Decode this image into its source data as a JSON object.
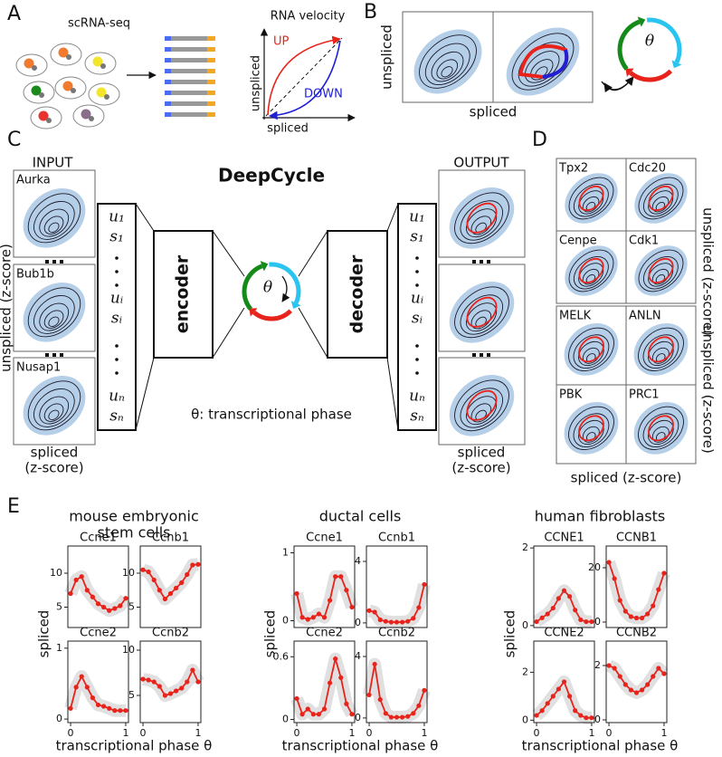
{
  "panel_a": {
    "label": "A",
    "method": "scRNA-seq",
    "velocity_title": "RNA velocity",
    "up": "UP",
    "down": "DOWN",
    "xlabel": "spliced",
    "ylabel": "unspliced"
  },
  "panel_b": {
    "label": "B",
    "xlabel": "spliced",
    "ylabel": "unspliced",
    "phase_symbol": "θ"
  },
  "panel_c": {
    "label": "C",
    "title": "DeepCycle",
    "input": "INPUT",
    "output": "OUTPUT",
    "genes": [
      "Aurka",
      "Bub1b",
      "Nusap1"
    ],
    "ylabel": "unspliced (z-score)",
    "xlabel_left": [
      "spliced",
      "(z-score)"
    ],
    "xlabel_right": [
      "spliced",
      "(z-score)"
    ],
    "vector_in": [
      "u₁",
      "s₁",
      "uᵢ",
      "sᵢ",
      "uₙ",
      "sₙ"
    ],
    "vector_out": [
      "u₁",
      "s₁",
      "uᵢ",
      "sᵢ",
      "uₙ",
      "sₙ"
    ],
    "encoder": "encoder",
    "decoder": "decoder",
    "phase_symbol": "θ",
    "phase_caption": "θ: transcriptional phase"
  },
  "panel_d": {
    "label": "D",
    "genes": [
      "Tpx2",
      "Cdc20",
      "Cenpe",
      "Cdk1",
      "MELK",
      "ANLN",
      "PBK",
      "PRC1"
    ],
    "ylabels": [
      "unspliced (z-score)",
      "unspliced (z-score)"
    ],
    "xlabel": "spliced (z-score)"
  },
  "panel_e": {
    "label": "E",
    "groups": [
      {
        "title": [
          "mouse embryonic",
          "stem cells"
        ],
        "ylabel": "spliced",
        "xlabel": "transcriptional phase θ"
      },
      {
        "title": [
          "ductal cells"
        ],
        "ylabel": "spliced",
        "xlabel": "transcriptional phase θ"
      },
      {
        "title": [
          "human fibroblasts"
        ],
        "ylabel": "spliced",
        "xlabel": "transcriptional phase θ"
      }
    ]
  },
  "chart_data": [
    {
      "type": "line",
      "title": "Ccne1",
      "x": [
        0,
        0.1,
        0.2,
        0.3,
        0.4,
        0.5,
        0.6,
        0.7,
        0.8,
        0.9,
        1
      ],
      "values": [
        7,
        9,
        9.5,
        7.5,
        6.5,
        5.5,
        5,
        4.5,
        4.8,
        5.2,
        6.3
      ],
      "color": "#e8231c",
      "xlim": [
        -0.05,
        1.05
      ],
      "ylim": [
        2,
        14
      ],
      "yticks": [
        5,
        10
      ]
    },
    {
      "type": "line",
      "title": "Ccnb1",
      "x": [
        0,
        0.1,
        0.2,
        0.3,
        0.4,
        0.5,
        0.6,
        0.7,
        0.8,
        0.9,
        1
      ],
      "values": [
        10.5,
        10.2,
        9,
        7.5,
        6.2,
        7,
        7.8,
        8.6,
        9.8,
        11.2,
        11.3
      ],
      "color": "#e8231c",
      "xlim": [
        -0.05,
        1.05
      ],
      "ylim": [
        2,
        14
      ],
      "yticks": [
        5,
        10
      ]
    },
    {
      "type": "line",
      "title": "Ccne2",
      "x": [
        0,
        0.1,
        0.2,
        0.3,
        0.4,
        0.5,
        0.6,
        0.7,
        0.8,
        0.9,
        1
      ],
      "values": [
        0.15,
        0.45,
        0.6,
        0.45,
        0.3,
        0.2,
        0.18,
        0.15,
        0.12,
        0.12,
        0.12
      ],
      "color": "#e8231c",
      "xlim": [
        -0.05,
        1.05
      ],
      "ylim": [
        -0.05,
        1.1
      ],
      "yticks": [
        0,
        1
      ],
      "xticks": [
        0,
        1
      ]
    },
    {
      "type": "line",
      "title": "Ccnb2",
      "x": [
        0,
        0.1,
        0.2,
        0.3,
        0.4,
        0.5,
        0.6,
        0.7,
        0.8,
        0.9,
        1
      ],
      "values": [
        6.8,
        6.7,
        6.5,
        6,
        5,
        5.2,
        5.5,
        5.8,
        6.5,
        7.8,
        6.5
      ],
      "color": "#e8231c",
      "xlim": [
        -0.05,
        1.05
      ],
      "ylim": [
        2,
        11
      ],
      "yticks": [
        5,
        10
      ],
      "xticks": [
        0,
        1
      ]
    },
    {
      "type": "line",
      "title": "Ccne1",
      "x": [
        0,
        0.1,
        0.2,
        0.3,
        0.4,
        0.5,
        0.6,
        0.7,
        0.8,
        0.9,
        1
      ],
      "values": [
        0.4,
        0.05,
        0.02,
        0.05,
        0.1,
        0.05,
        0.3,
        0.65,
        0.65,
        0.45,
        0.2
      ],
      "color": "#e8231c",
      "xlim": [
        -0.05,
        1.05
      ],
      "ylim": [
        -0.1,
        1.1
      ],
      "yticks": [
        0,
        1
      ]
    },
    {
      "type": "line",
      "title": "Ccnb1",
      "x": [
        0,
        0.1,
        0.2,
        0.3,
        0.4,
        0.5,
        0.6,
        0.7,
        0.8,
        0.9,
        1
      ],
      "values": [
        0.8,
        0.7,
        0.2,
        0.1,
        0.05,
        0.05,
        0.05,
        0.1,
        0.3,
        1.0,
        2.5
      ],
      "color": "#e8231c",
      "xlim": [
        -0.05,
        1.05
      ],
      "ylim": [
        -0.3,
        5
      ],
      "yticks": [
        0,
        4
      ]
    },
    {
      "type": "line",
      "title": "Ccne2",
      "x": [
        0,
        0.1,
        0.2,
        0.3,
        0.4,
        0.5,
        0.6,
        0.7,
        0.8,
        0.9,
        1
      ],
      "values": [
        0.2,
        0.05,
        0.1,
        0.05,
        0.05,
        0.1,
        0.35,
        0.58,
        0.4,
        0.15,
        0.05
      ],
      "color": "#e8231c",
      "xlim": [
        -0.05,
        1.05
      ],
      "ylim": [
        -0.03,
        0.75
      ],
      "yticks": [
        0,
        0.6
      ],
      "xticks": [
        0,
        1
      ]
    },
    {
      "type": "line",
      "title": "Ccnb2",
      "x": [
        0,
        0.1,
        0.2,
        0.3,
        0.4,
        0.5,
        0.6,
        0.7,
        0.8,
        0.9,
        1
      ],
      "values": [
        1.5,
        3.5,
        1.2,
        0.3,
        0.05,
        0.05,
        0.05,
        0.1,
        0.3,
        0.8,
        1.8
      ],
      "color": "#e8231c",
      "xlim": [
        -0.05,
        1.05
      ],
      "ylim": [
        -0.3,
        5
      ],
      "yticks": [
        0,
        4
      ],
      "xticks": [
        0,
        1
      ]
    },
    {
      "type": "line",
      "title": "CCNE1",
      "x": [
        0,
        0.1,
        0.2,
        0.3,
        0.4,
        0.5,
        0.6,
        0.7,
        0.8,
        0.9,
        1
      ],
      "values": [
        0.1,
        0.2,
        0.3,
        0.45,
        0.7,
        0.9,
        0.75,
        0.4,
        0.15,
        0.1,
        0.1
      ],
      "color": "#e8231c",
      "xlim": [
        -0.05,
        1.05
      ],
      "ylim": [
        -0.05,
        2.05
      ],
      "yticks": [
        0,
        2
      ]
    },
    {
      "type": "line",
      "title": "CCNB1",
      "x": [
        0,
        0.1,
        0.2,
        0.3,
        0.4,
        0.5,
        0.6,
        0.7,
        0.8,
        0.9,
        1
      ],
      "values": [
        22,
        16,
        8,
        4,
        2,
        1.5,
        1.5,
        3,
        6,
        12,
        18
      ],
      "color": "#e8231c",
      "xlim": [
        -0.05,
        1.05
      ],
      "ylim": [
        -2,
        28
      ],
      "yticks": [
        0,
        20
      ]
    },
    {
      "type": "line",
      "title": "CCNE2",
      "x": [
        0,
        0.1,
        0.2,
        0.3,
        0.4,
        0.5,
        0.6,
        0.7,
        0.8,
        0.9,
        1
      ],
      "values": [
        0.2,
        0.4,
        0.7,
        1.0,
        1.3,
        1.6,
        1.0,
        0.4,
        0.2,
        0.1,
        0.1
      ],
      "color": "#e8231c",
      "xlim": [
        -0.05,
        1.05
      ],
      "ylim": [
        -0.1,
        3.3
      ],
      "yticks": [
        0,
        2
      ],
      "xticks": [
        0,
        1
      ]
    },
    {
      "type": "line",
      "title": "CCNB2",
      "x": [
        0,
        0.1,
        0.2,
        0.3,
        0.4,
        0.5,
        0.6,
        0.7,
        0.8,
        0.9,
        1
      ],
      "values": [
        2.0,
        1.9,
        1.6,
        1.3,
        1.1,
        1.0,
        1.1,
        1.3,
        1.6,
        1.9,
        1.7
      ],
      "color": "#e8231c",
      "xlim": [
        -0.05,
        1.05
      ],
      "ylim": [
        -0.1,
        2.9
      ],
      "yticks": [
        0,
        2
      ],
      "xticks": [
        0,
        1
      ]
    }
  ]
}
